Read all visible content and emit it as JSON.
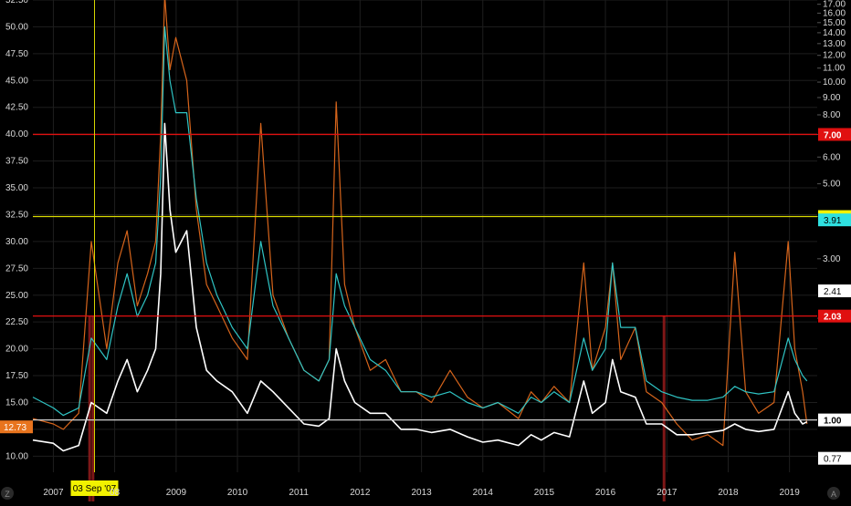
{
  "colors": {
    "background": "#000000",
    "grid": "#1e1e1e",
    "tick_text": "#d8d8d8",
    "white_series": "#ffffff",
    "teal_series": "#2fc4c4",
    "orange_series": "#d5641b",
    "red_line": "#e01010",
    "yellow_line": "#d8d800",
    "gray_line": "#cfcfcf",
    "dark_red_bars": "#8b1a1a",
    "orange_badge": "#e8741e",
    "red_badge": "#e01010",
    "yellow_badge": "#f2f200",
    "teal_badge": "#2fe0e0",
    "white_badge": "#ffffff"
  },
  "icons": {
    "bottom_left": "Z",
    "bottom_right": "A"
  },
  "chart_data": {
    "type": "line",
    "x_ticks": [
      "2007",
      "08",
      "2009",
      "2010",
      "2011",
      "2012",
      "2013",
      "2014",
      "2015",
      "2016",
      "2017",
      "2018",
      "2019"
    ],
    "left_axis": {
      "ticks": [
        "10.00",
        "12.50",
        "15.00",
        "17.50",
        "20.00",
        "22.50",
        "25.00",
        "27.50",
        "30.00",
        "32.50",
        "35.00",
        "37.50",
        "40.00",
        "42.50",
        "45.00",
        "47.50",
        "50.00",
        "52.50"
      ],
      "range": [
        8.5,
        52.5
      ]
    },
    "right_axis": {
      "ticks": [
        "2.00",
        "3.00",
        "4.00",
        "5.00",
        "6.00",
        "7.00",
        "8.00",
        "9.00",
        "10.00",
        "11.00",
        "12.00",
        "13.00",
        "14.00",
        "15.00",
        "16.00",
        "17.00"
      ],
      "scale": "log",
      "range": [
        0.7,
        17.5
      ]
    },
    "x_range": [
      "2006-09-01",
      "2019-06-15"
    ],
    "crosshair": {
      "date": "2007-09-03",
      "label": "03 Sep '07"
    },
    "horizontal_lines": [
      {
        "axis": "right",
        "value": 7.0,
        "color": "red",
        "label": "7.00"
      },
      {
        "axis": "right",
        "value": 4.0,
        "color": "yellow",
        "label": "4.00"
      },
      {
        "axis": "right",
        "value": 2.03,
        "color": "red",
        "label": "2.03"
      },
      {
        "axis": "right",
        "value": 1.0,
        "color": "gray",
        "label": "1.00"
      }
    ],
    "value_badges": [
      {
        "axis": "left",
        "value": 12.73,
        "label": "12.73",
        "color": "orange"
      },
      {
        "axis": "right",
        "value": 3.91,
        "label": "3.91",
        "color": "teal"
      },
      {
        "axis": "right",
        "value": 2.41,
        "label": "2.41",
        "color": "white"
      },
      {
        "axis": "right",
        "value": 0.77,
        "label": "0.77",
        "color": "white"
      }
    ],
    "series": [
      {
        "color": "teal",
        "axis": "left",
        "x": [
          "2006-09-01",
          "2007-01-01",
          "2007-03-01",
          "2007-06-01",
          "2007-08-15",
          "2007-11-15",
          "2008-01-20",
          "2008-03-15",
          "2008-05-15",
          "2008-07-15",
          "2008-09-01",
          "2008-10-01",
          "2008-10-25",
          "2008-11-25",
          "2008-12-30",
          "2009-03-05",
          "2009-05-01",
          "2009-07-01",
          "2009-09-01",
          "2009-12-01",
          "2010-03-01",
          "2010-05-20",
          "2010-08-01",
          "2010-11-01",
          "2011-02-01",
          "2011-05-01",
          "2011-07-01",
          "2011-08-12",
          "2011-10-01",
          "2011-12-01",
          "2012-03-01",
          "2012-06-01",
          "2012-09-01",
          "2012-12-01",
          "2013-03-01",
          "2013-06-20",
          "2013-10-01",
          "2014-01-01",
          "2014-04-01",
          "2014-08-01",
          "2014-10-15",
          "2014-12-15",
          "2015-03-01",
          "2015-06-01",
          "2015-08-25",
          "2015-10-15",
          "2016-01-01",
          "2016-02-12",
          "2016-04-01",
          "2016-06-27",
          "2016-09-01",
          "2016-12-01",
          "2017-03-01",
          "2017-06-01",
          "2017-09-01",
          "2017-12-01",
          "2018-02-09",
          "2018-04-15",
          "2018-07-01",
          "2018-10-01",
          "2018-12-24",
          "2019-02-01",
          "2019-03-20",
          "2019-04-15"
        ],
        "y": [
          15.5,
          14.5,
          13.8,
          14.5,
          21,
          19,
          24,
          27,
          23,
          25,
          28,
          36,
          50,
          45,
          42,
          42,
          34,
          28,
          25,
          22,
          20,
          30,
          24,
          21,
          18,
          17,
          19,
          27,
          24,
          22,
          19,
          18,
          16,
          16,
          15.5,
          16,
          15,
          14.5,
          15,
          14,
          15.5,
          15,
          16,
          15,
          21,
          18,
          20,
          28,
          22,
          22,
          17,
          16,
          15.5,
          15.2,
          15.2,
          15.5,
          16.5,
          16,
          15.8,
          16,
          21,
          19,
          17.5,
          17
        ]
      },
      {
        "color": "white",
        "axis": "left",
        "x": [
          "2006-09-01",
          "2007-01-01",
          "2007-03-01",
          "2007-06-01",
          "2007-08-15",
          "2007-11-15",
          "2008-01-20",
          "2008-03-15",
          "2008-05-15",
          "2008-07-15",
          "2008-09-01",
          "2008-10-01",
          "2008-10-25",
          "2008-11-25",
          "2008-12-30",
          "2009-03-05",
          "2009-05-01",
          "2009-07-01",
          "2009-09-01",
          "2009-12-01",
          "2010-03-01",
          "2010-05-20",
          "2010-08-01",
          "2010-11-01",
          "2011-02-01",
          "2011-05-01",
          "2011-07-01",
          "2011-08-12",
          "2011-10-01",
          "2011-12-01",
          "2012-03-01",
          "2012-06-01",
          "2012-09-01",
          "2012-12-01",
          "2013-03-01",
          "2013-06-20",
          "2013-10-01",
          "2014-01-01",
          "2014-04-01",
          "2014-08-01",
          "2014-10-15",
          "2014-12-15",
          "2015-03-01",
          "2015-06-01",
          "2015-08-25",
          "2015-10-15",
          "2016-01-01",
          "2016-02-12",
          "2016-04-01",
          "2016-06-27",
          "2016-09-01",
          "2016-12-01",
          "2017-03-01",
          "2017-06-01",
          "2017-09-01",
          "2017-12-01",
          "2018-02-09",
          "2018-04-15",
          "2018-07-01",
          "2018-10-01",
          "2018-12-24",
          "2019-02-01",
          "2019-03-20",
          "2019-04-15"
        ],
        "y": [
          11.5,
          11.2,
          10.5,
          11,
          15,
          14,
          17,
          19,
          16,
          18,
          20,
          27,
          41,
          33,
          29,
          31,
          22,
          18,
          17,
          16,
          14,
          17,
          16,
          14.5,
          13,
          12.8,
          13.5,
          20,
          17,
          15,
          14,
          14,
          12.5,
          12.5,
          12.2,
          12.5,
          11.8,
          11.3,
          11.5,
          11,
          12,
          11.5,
          12.2,
          11.8,
          17,
          14,
          15,
          19,
          16,
          15.5,
          13,
          13,
          12,
          12,
          12.2,
          12.4,
          13,
          12.5,
          12.3,
          12.5,
          16,
          14,
          13,
          13.2
        ]
      },
      {
        "color": "orange",
        "axis": "left",
        "x": [
          "2006-09-01",
          "2007-01-01",
          "2007-03-01",
          "2007-06-01",
          "2007-08-15",
          "2007-11-15",
          "2008-01-20",
          "2008-03-15",
          "2008-05-15",
          "2008-07-15",
          "2008-09-01",
          "2008-10-01",
          "2008-10-25",
          "2008-11-25",
          "2008-12-30",
          "2009-03-05",
          "2009-05-01",
          "2009-07-01",
          "2009-09-01",
          "2009-12-01",
          "2010-03-01",
          "2010-05-20",
          "2010-08-01",
          "2010-11-01",
          "2011-02-01",
          "2011-05-01",
          "2011-07-01",
          "2011-08-12",
          "2011-10-01",
          "2011-12-01",
          "2012-03-01",
          "2012-06-01",
          "2012-09-01",
          "2012-12-01",
          "2013-03-01",
          "2013-06-20",
          "2013-10-01",
          "2014-01-01",
          "2014-04-01",
          "2014-08-01",
          "2014-10-15",
          "2014-12-15",
          "2015-03-01",
          "2015-06-01",
          "2015-08-25",
          "2015-10-15",
          "2016-01-01",
          "2016-02-12",
          "2016-04-01",
          "2016-06-27",
          "2016-09-01",
          "2016-12-01",
          "2017-03-01",
          "2017-06-01",
          "2017-09-01",
          "2017-12-01",
          "2018-02-09",
          "2018-04-15",
          "2018-07-01",
          "2018-10-01",
          "2018-12-24",
          "2019-02-01",
          "2019-03-20",
          "2019-04-15"
        ],
        "y": [
          13.5,
          13,
          12.5,
          14,
          30,
          20,
          28,
          31,
          24,
          27,
          30,
          40,
          53,
          46,
          49,
          45,
          33,
          26,
          24,
          21,
          19,
          41,
          25,
          21,
          18,
          17,
          19,
          43,
          26,
          22,
          18,
          19,
          16,
          16,
          15,
          18,
          15.5,
          14.5,
          15,
          13.5,
          16,
          15,
          16.5,
          15,
          28,
          18,
          22,
          28,
          19,
          22,
          16,
          15,
          13,
          11.5,
          12,
          11,
          29,
          16,
          14,
          15,
          30,
          20,
          16,
          13
        ]
      }
    ]
  }
}
